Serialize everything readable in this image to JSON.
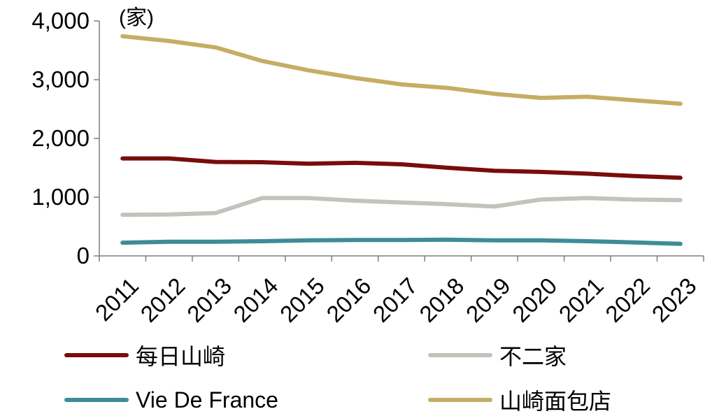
{
  "chart_data": {
    "type": "line",
    "unit_label": "(家)",
    "x": [
      "2011",
      "2012",
      "2013",
      "2014",
      "2015",
      "2016",
      "2017",
      "2018",
      "2019",
      "2020",
      "2021",
      "2022",
      "2023"
    ],
    "ylim": [
      0,
      4000
    ],
    "yticks": [
      0,
      1000,
      2000,
      3000,
      4000
    ],
    "ytick_labels": [
      "0",
      "1,000",
      "2,000",
      "3,000",
      "4,000"
    ],
    "grid": false,
    "legend_position": "bottom",
    "series": [
      {
        "name": "每日山崎",
        "color": "#7a0c0c",
        "values": [
          1660,
          1660,
          1600,
          1595,
          1570,
          1585,
          1560,
          1500,
          1450,
          1430,
          1400,
          1360,
          1330
        ]
      },
      {
        "name": "不二家",
        "color": "#c3c3bd",
        "values": [
          700,
          705,
          730,
          985,
          985,
          940,
          910,
          880,
          840,
          960,
          985,
          960,
          950
        ]
      },
      {
        "name": "Vie De France",
        "color": "#3d8c96",
        "values": [
          225,
          240,
          240,
          250,
          265,
          270,
          270,
          275,
          265,
          265,
          250,
          230,
          205
        ]
      },
      {
        "name": "山崎面包店",
        "color": "#c6ad65",
        "values": [
          3740,
          3660,
          3550,
          3320,
          3160,
          3030,
          2920,
          2860,
          2760,
          2690,
          2710,
          2650,
          2590
        ]
      }
    ]
  }
}
